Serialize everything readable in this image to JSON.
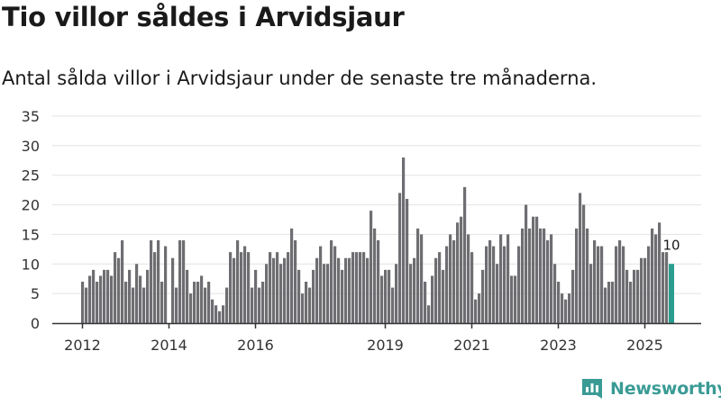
{
  "header": {
    "title": "Tio villor såldes i Arvidsjaur",
    "subtitle": "Antal sålda villor i Arvidsjaur under de senaste tre månaderna."
  },
  "brand": {
    "name": "Newsworthy",
    "icon": "newsworthy-logo-icon"
  },
  "colors": {
    "bar": "#6e6e72",
    "highlight": "#2a9d8f",
    "grid": "#e2e2e2",
    "axis": "#333333",
    "brand": "#3a9b95"
  },
  "chart_data": {
    "type": "bar",
    "title": "Tio villor såldes i Arvidsjaur",
    "xlabel": "",
    "ylabel": "",
    "ylim": [
      0,
      35
    ],
    "yticks": [
      0,
      5,
      10,
      15,
      20,
      25,
      30,
      35
    ],
    "xticks": [
      "2012",
      "2014",
      "2016",
      "2019",
      "2021",
      "2023",
      "2025"
    ],
    "xtick_index": [
      0,
      24,
      48,
      84,
      108,
      132,
      156
    ],
    "highlight_label": "10",
    "values": [
      7,
      6,
      8,
      9,
      7,
      8,
      9,
      9,
      8,
      12,
      11,
      14,
      7,
      9,
      6,
      10,
      8,
      6,
      9,
      14,
      12,
      14,
      7,
      13,
      0,
      11,
      6,
      14,
      14,
      9,
      5,
      7,
      7,
      8,
      6,
      7,
      4,
      3,
      2,
      3,
      6,
      12,
      11,
      14,
      12,
      13,
      12,
      6,
      9,
      6,
      7,
      10,
      12,
      11,
      12,
      10,
      11,
      12,
      16,
      14,
      9,
      5,
      7,
      6,
      9,
      11,
      13,
      10,
      10,
      14,
      13,
      11,
      9,
      11,
      11,
      12,
      12,
      12,
      12,
      11,
      19,
      16,
      14,
      8,
      9,
      9,
      6,
      10,
      22,
      28,
      21,
      10,
      11,
      16,
      15,
      7,
      3,
      8,
      11,
      12,
      9,
      13,
      15,
      14,
      17,
      18,
      23,
      15,
      12,
      4,
      5,
      9,
      13,
      14,
      13,
      10,
      15,
      13,
      15,
      8,
      8,
      13,
      16,
      20,
      16,
      18,
      18,
      16,
      16,
      14,
      15,
      10,
      7,
      5,
      4,
      5,
      9,
      16,
      22,
      20,
      16,
      10,
      14,
      13,
      13,
      6,
      7,
      7,
      13,
      14,
      13,
      9,
      7,
      9,
      9,
      11,
      11,
      13,
      16,
      15,
      17,
      12,
      12,
      10
    ]
  }
}
